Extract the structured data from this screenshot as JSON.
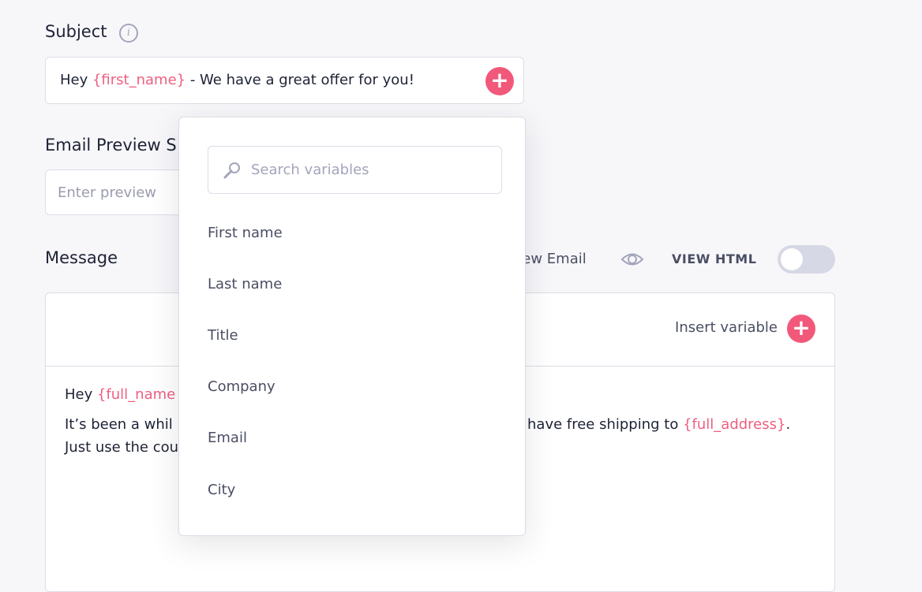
{
  "subject": {
    "label": "Subject",
    "icon": "info-icon",
    "value_prefix": "Hey ",
    "value_var": "{first_name}",
    "value_suffix": " - We have a great offer for you!"
  },
  "preview": {
    "label": "Email Preview S",
    "placeholder": "Enter preview"
  },
  "message": {
    "label": "Message",
    "preview_email": "Preview Email",
    "view_html": "VIEW HTML",
    "view_html_on": false,
    "insert_variable": "Insert variable",
    "body": {
      "l1_prefix": "Hey ",
      "l1_var": "{full_name",
      "l2_left": "It’s been a whil",
      "l2_right": "have free shipping to ",
      "l2_var": "{full_address}",
      "l2_end": ".",
      "l3_left": "Just use the cou"
    }
  },
  "dropdown": {
    "search_placeholder": "Search variables",
    "items": [
      "First name",
      "Last name",
      "Title",
      "Company",
      "Email",
      "City"
    ]
  },
  "colors": {
    "accent": "#f2587a",
    "variable": "#ee5f80",
    "background": "#f7f7fa"
  }
}
